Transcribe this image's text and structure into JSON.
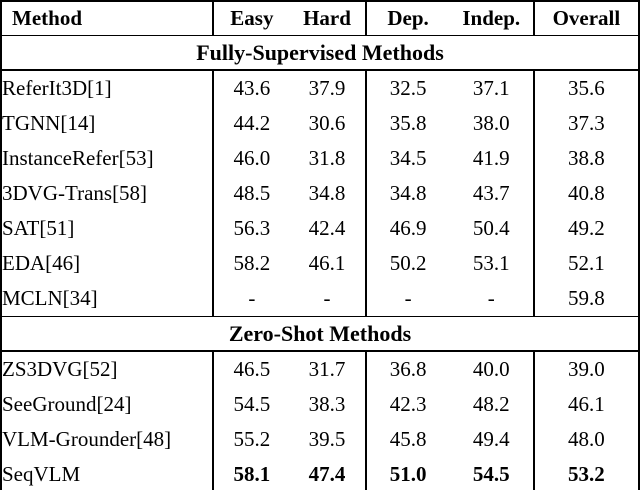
{
  "table": {
    "columns": [
      "Method",
      "Easy",
      "Hard",
      "Dep.",
      "Indep.",
      "Overall"
    ],
    "sections": [
      {
        "title": "Fully-Supervised Methods",
        "rows": [
          {
            "method": "ReferIt3D[1]",
            "values": [
              "43.6",
              "37.9",
              "32.5",
              "37.1",
              "35.6"
            ],
            "bold": false
          },
          {
            "method": "TGNN[14]",
            "values": [
              "44.2",
              "30.6",
              "35.8",
              "38.0",
              "37.3"
            ],
            "bold": false
          },
          {
            "method": "InstanceRefer[53]",
            "values": [
              "46.0",
              "31.8",
              "34.5",
              "41.9",
              "38.8"
            ],
            "bold": false
          },
          {
            "method": "3DVG-Trans[58]",
            "values": [
              "48.5",
              "34.8",
              "34.8",
              "43.7",
              "40.8"
            ],
            "bold": false
          },
          {
            "method": "SAT[51]",
            "values": [
              "56.3",
              "42.4",
              "46.9",
              "50.4",
              "49.2"
            ],
            "bold": false
          },
          {
            "method": "EDA[46]",
            "values": [
              "58.2",
              "46.1",
              "50.2",
              "53.1",
              "52.1"
            ],
            "bold": false
          },
          {
            "method": "MCLN[34]",
            "values": [
              "-",
              "-",
              "-",
              "-",
              "59.8"
            ],
            "bold": false
          }
        ]
      },
      {
        "title": "Zero-Shot Methods",
        "rows": [
          {
            "method": "ZS3DVG[52]",
            "values": [
              "46.5",
              "31.7",
              "36.8",
              "40.0",
              "39.0"
            ],
            "bold": false
          },
          {
            "method": "SeeGround[24]",
            "values": [
              "54.5",
              "38.3",
              "42.3",
              "48.2",
              "46.1"
            ],
            "bold": false
          },
          {
            "method": "VLM-Grounder[48]",
            "values": [
              "55.2",
              "39.5",
              "45.8",
              "49.4",
              "48.0"
            ],
            "bold": false
          },
          {
            "method": "SeqVLM",
            "values": [
              "58.1",
              "47.4",
              "51.0",
              "54.5",
              "53.2"
            ],
            "bold": true
          }
        ]
      }
    ],
    "colors": {
      "text": "#000000",
      "background": "#ffffff",
      "border": "#000000"
    }
  }
}
